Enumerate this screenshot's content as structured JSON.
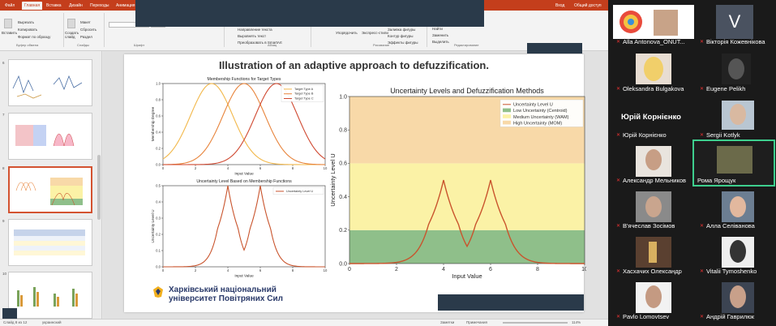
{
  "ppt": {
    "tabs": [
      "Файл",
      "Главная",
      "Вставка",
      "Дизайн",
      "Переходы",
      "Анимация"
    ],
    "active_tab": "Главная",
    "user_name": "Вход",
    "share": "Общий доступ",
    "ribbon": {
      "insert_btn": "Вставить",
      "cut": "Вырезать",
      "copy": "Копировать",
      "format_painter": "Формат по образцу",
      "new_slide": "Создать слайд",
      "layout": "Макет",
      "reset": "Сбросить",
      "section": "Раздел",
      "clipboard_group": "Буфер обмена",
      "slides_group": "Слайды",
      "font_group": "Шрифт",
      "paragraph_group": "Абзац",
      "text_direction": "Направление текста",
      "align_text": "Выровнять текст",
      "smartart": "Преобразовать в SmartArt",
      "arrange": "Упорядочить",
      "quick_styles": "Экспресс-стили",
      "fill": "Заливка фигуры",
      "outline": "Контур фигуры",
      "effects": "Эффекты фигуры",
      "drawing_group": "Рисование",
      "find": "Найти",
      "replace": "Заменить",
      "select": "Выделить",
      "editing_group": "Редактирование"
    },
    "thumb_numbers": [
      "6",
      "7",
      "8",
      "9",
      "10"
    ],
    "status": {
      "slide_info": "Слайд 8 из 12",
      "language": "украинский",
      "notes": "Заметки",
      "comments": "Примечания",
      "zoom": "114%"
    }
  },
  "slide": {
    "title": "Illustration of an adaptive approach to defuzzification.",
    "university_line1": "Харківський національний",
    "university_line2": "університет Повітряних Сил"
  },
  "chart_data": [
    {
      "type": "line",
      "title": "Membership Functions for Target Types",
      "xlabel": "Input Value",
      "ylabel": "Membership Degree",
      "xlim": [
        0,
        10
      ],
      "ylim": [
        0,
        1
      ],
      "x_ticks": [
        "0",
        "2",
        "4",
        "6",
        "8",
        "10"
      ],
      "y_ticks": [
        "0.0",
        "0.2",
        "0.4",
        "0.6",
        "0.8",
        "1.0"
      ],
      "legend_position": "top-right",
      "series": [
        {
          "name": "Target Type A",
          "center": 3,
          "sigma": 1.3,
          "color": "#f2b84b"
        },
        {
          "name": "Target Type B",
          "center": 5,
          "sigma": 1.3,
          "color": "#e8853d"
        },
        {
          "name": "Target Type C",
          "center": 7,
          "sigma": 1.3,
          "color": "#d04a32"
        }
      ]
    },
    {
      "type": "line",
      "title": "Uncertainty Level Based on Membership Functions",
      "xlabel": "Input Value",
      "ylabel": "Uncertainty Level U",
      "xlim": [
        0,
        10
      ],
      "ylim": [
        0,
        0.5
      ],
      "x_ticks": [
        "0",
        "2",
        "4",
        "6",
        "8",
        "10"
      ],
      "y_ticks": [
        "0.0",
        "0.1",
        "0.2",
        "0.3",
        "0.4",
        "0.5"
      ],
      "legend_position": "top-right",
      "series": [
        {
          "name": "Uncertainty Level U",
          "color": "#c9542d"
        }
      ]
    },
    {
      "type": "line",
      "title": "Uncertainty Levels and Defuzzification Methods",
      "xlabel": "Input Value",
      "ylabel": "Uncertainty Level U",
      "xlim": [
        0,
        10
      ],
      "ylim": [
        0,
        1
      ],
      "x_ticks": [
        "0",
        "2",
        "4",
        "6",
        "8",
        "10"
      ],
      "y_ticks": [
        "0.0",
        "0.2",
        "0.4",
        "0.6",
        "0.8",
        "1.0"
      ],
      "legend_position": "top-right",
      "series": [
        {
          "name": "Uncertainty Level U",
          "color": "#c9542d"
        }
      ],
      "bands": [
        {
          "name": "Low Uncertainty (Centroid)",
          "from": 0,
          "to": 0.2,
          "color": "#8fbf8a"
        },
        {
          "name": "Medium Uncertainty (WAM)",
          "from": 0.2,
          "to": 0.6,
          "color": "#fbf2a6"
        },
        {
          "name": "High Uncertainty (MOM)",
          "from": 0.6,
          "to": 1.0,
          "color": "#f8d9a8"
        }
      ]
    }
  ],
  "zoom": {
    "participants": [
      "Alla Antonova_ONUT...",
      "Вікторія Кожевнікова",
      "Oleksandra Bulgakova",
      "Eugene Pelikh",
      "Юрій Корнієнко",
      "Sergii Kotlyk",
      "Александр Мельников",
      "Рома Ярощук",
      "В'ячеслав Зосімов",
      "Алла Селіванова",
      "Хасхачих Олександр",
      "Vitalii Tymoshenko",
      "Pavlo Lomovtsev",
      "Андрій Гаврилюк"
    ],
    "letter_avatar": "V",
    "name_tile": "Юрій Корнієнко"
  }
}
